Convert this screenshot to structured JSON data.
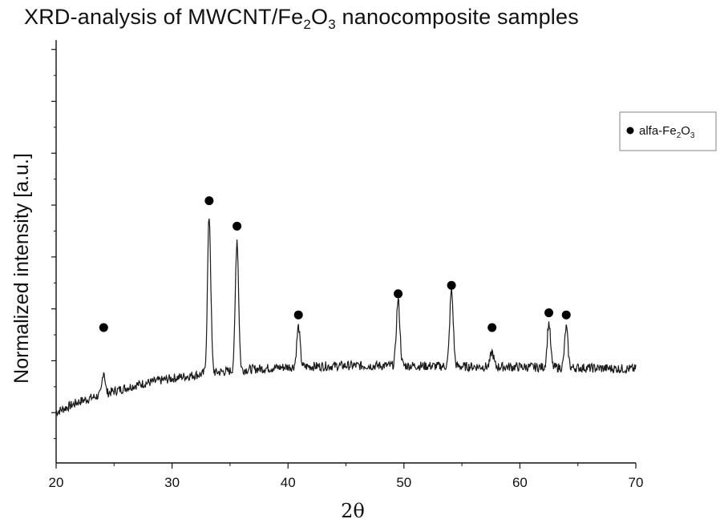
{
  "chart_data": {
    "type": "line",
    "title_main": "XRD-analysis of MWCNT/Fe",
    "title_sub1": "2",
    "title_mid": "O",
    "title_sub2": "3",
    "title_end": " nanocomposite samples",
    "xlabel": "2θ",
    "ylabel": "Normalized intensity [a.u.]",
    "xlim": [
      20,
      70
    ],
    "x_ticks": [
      "20",
      "30",
      "40",
      "50",
      "60",
      "70"
    ],
    "y_tick_count": 8,
    "legend": {
      "marker": "filled-circle",
      "label_main": "alfa-Fe",
      "label_sub1": "2",
      "label_mid": "O",
      "label_sub2": "3",
      "placement": "top-right"
    },
    "series": [
      {
        "baseline": [
          [
            20,
            1.2
          ],
          [
            22,
            1.45
          ],
          [
            24,
            1.62
          ],
          [
            27,
            1.85
          ],
          [
            30,
            2.0
          ],
          [
            33,
            2.12
          ],
          [
            36,
            2.2
          ],
          [
            40,
            2.27
          ],
          [
            45,
            2.3
          ],
          [
            50,
            2.3
          ],
          [
            55,
            2.28
          ],
          [
            60,
            2.27
          ],
          [
            65,
            2.25
          ],
          [
            70,
            2.22
          ]
        ],
        "peaks": [
          {
            "x": 24.1,
            "height": 0.55,
            "width": 0.12
          },
          {
            "x": 33.2,
            "height": 3.7,
            "width": 0.14
          },
          {
            "x": 35.6,
            "height": 3.1,
            "width": 0.14
          },
          {
            "x": 40.9,
            "height": 0.95,
            "width": 0.14
          },
          {
            "x": 49.5,
            "height": 1.55,
            "width": 0.15
          },
          {
            "x": 54.1,
            "height": 1.8,
            "width": 0.15
          },
          {
            "x": 57.6,
            "height": 0.35,
            "width": 0.14
          },
          {
            "x": 62.5,
            "height": 1.05,
            "width": 0.14
          },
          {
            "x": 64.0,
            "height": 0.95,
            "width": 0.14
          }
        ],
        "noise": 0.05
      }
    ],
    "markers": [
      {
        "x": 24.1,
        "y": 3.2
      },
      {
        "x": 33.2,
        "y": 6.2
      },
      {
        "x": 35.6,
        "y": 5.6
      },
      {
        "x": 40.9,
        "y": 3.5
      },
      {
        "x": 49.5,
        "y": 4.0
      },
      {
        "x": 54.1,
        "y": 4.2
      },
      {
        "x": 57.6,
        "y": 3.2
      },
      {
        "x": 62.5,
        "y": 3.55
      },
      {
        "x": 64.0,
        "y": 3.5
      }
    ],
    "ylim": [
      0,
      10
    ]
  }
}
